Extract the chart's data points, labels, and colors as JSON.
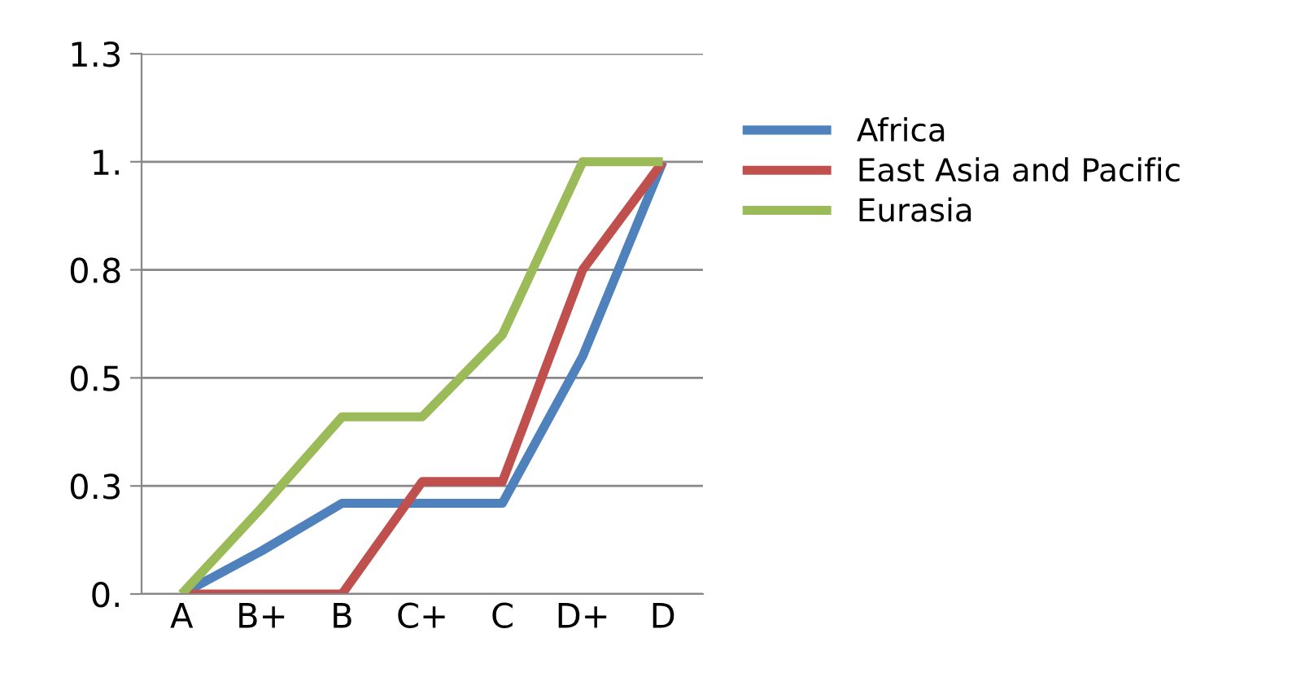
{
  "chart_data": {
    "type": "line",
    "categories": [
      "A",
      "B+",
      "B",
      "C+",
      "C",
      "D+",
      "D"
    ],
    "series": [
      {
        "name": "Africa",
        "color": "#4f81bd",
        "values": [
          0,
          0.1,
          0.21,
          0.21,
          0.21,
          0.55,
          1
        ]
      },
      {
        "name": "East Asia and Pacific",
        "color": "#c0504d",
        "values": [
          0,
          0,
          0,
          0.26,
          0.26,
          0.75,
          1
        ]
      },
      {
        "name": "Eurasia",
        "color": "#9bbb59",
        "values": [
          0,
          0.2,
          0.41,
          0.41,
          0.6,
          1,
          1
        ]
      }
    ],
    "ylim": [
      0,
      1.25
    ],
    "yticks": [
      {
        "value": 0,
        "label": "0."
      },
      {
        "value": 0.25,
        "label": "0.3"
      },
      {
        "value": 0.5,
        "label": "0.5"
      },
      {
        "value": 0.75,
        "label": "0.8"
      },
      {
        "value": 1,
        "label": "1."
      },
      {
        "value": 1.25,
        "label": "1.3"
      }
    ],
    "grid": "y",
    "legend": "right",
    "marker": "none",
    "line_style": "solid"
  }
}
